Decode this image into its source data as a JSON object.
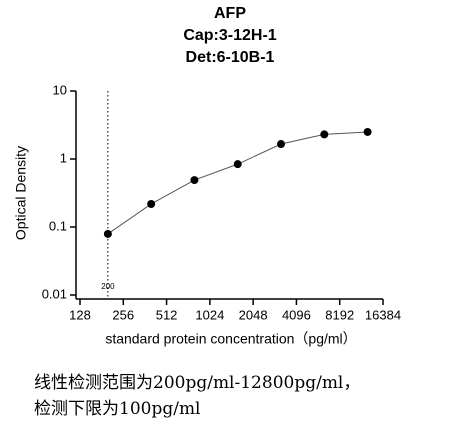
{
  "chart_data": {
    "type": "line",
    "title": [
      "AFP",
      "Cap:3-12H-1",
      "Det:6-10B-1"
    ],
    "x_label": "standard protein concentration（pg/ml）",
    "y_label": "Optical Density",
    "xscale": "log",
    "yscale": "log",
    "x": [
      200,
      400,
      800,
      1600,
      3200,
      6400,
      12800
    ],
    "series": [
      {
        "color": "#000000",
        "values": [
          0.079,
          0.218,
          0.49,
          0.84,
          1.66,
          2.3,
          2.5
        ]
      }
    ],
    "xlim": [
      128,
      16384
    ],
    "xticks": [
      128,
      256,
      512,
      1024,
      2048,
      4096,
      8192,
      16384
    ],
    "ylim": [
      0.01,
      10
    ],
    "yticks": [
      0.01,
      0.1,
      1,
      10
    ],
    "reference_line": {
      "x": 200
    },
    "caption": [
      "线性检测范围为200pg/ml-12800pg/ml，",
      "检测下限为100pg/ml"
    ]
  }
}
